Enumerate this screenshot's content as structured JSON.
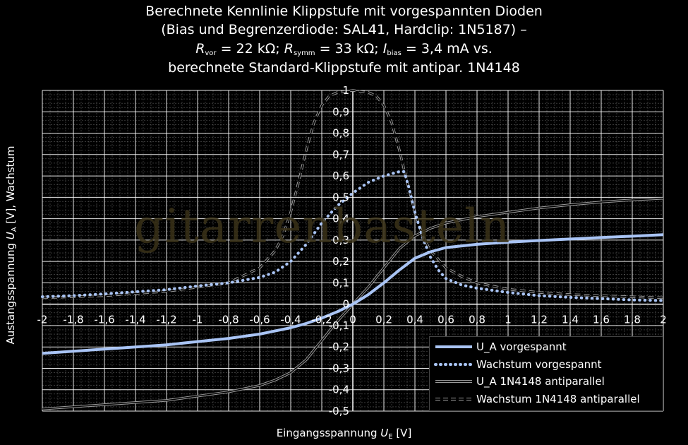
{
  "watermark": "gitarrenbasteln",
  "title": {
    "line1": "Berechnete Kennlinie Klippstufe mit vorgespannten Dioden",
    "line2": "(Bias und Begrenzerdiode: SAL41, Hardclip: 1N5187) –",
    "line3": {
      "r_vor_sym": "R",
      "r_vor_sub": "vor",
      "r_vor_val": " = 22 kΩ; ",
      "r_symm_sym": "R",
      "r_symm_sub": "symm",
      "r_symm_val": " = 33 kΩ; ",
      "i_bias_sym": "I",
      "i_bias_sub": "bias",
      "i_bias_val": " = 3,4 mA vs."
    },
    "line4": "berechnete Standard-Klippstufe mit antipar. 1N4148"
  },
  "axes": {
    "y_label_prefix": "Austangsspannung ",
    "y_label_sym": "U",
    "y_label_sub": "A",
    "y_label_suffix": " [V], Wachstum",
    "x_label_prefix": "Eingangsspannung ",
    "x_label_sym": "U",
    "x_label_sub": "E",
    "x_label_suffix": " [V]"
  },
  "colors": {
    "background": "#000000",
    "grid": "#ffffff",
    "ua_vorgespannt": "#a9c4f5",
    "wachstum_vorgespannt": "#a9c4f5",
    "ua_1n4148": "#9a9a9a",
    "wachstum_1n4148": "#9a9a9a",
    "watermark": "#3a3218"
  },
  "chart_data": {
    "type": "line",
    "xlim": [
      -2,
      2
    ],
    "ylim": [
      -0.5,
      1
    ],
    "grid": true,
    "legend_position": "bottom-right",
    "x_ticks": [
      "-2",
      "-1,8",
      "-1,6",
      "-1,4",
      "-1,2",
      "-1",
      "-0,8",
      "-0,6",
      "-0,4",
      "-0,2",
      "0",
      "0,2",
      "0,4",
      "0,6",
      "0,8",
      "1",
      "1,2",
      "1,4",
      "1,6",
      "1,8",
      "2"
    ],
    "y_ticks": [
      "-0,5",
      "-0,4",
      "-0,3",
      "-0,2",
      "-0,1",
      "0",
      "0,1",
      "0,2",
      "0,3",
      "0,4",
      "0,5",
      "0,6",
      "0,7",
      "0,8",
      "0,9",
      "1"
    ],
    "series": [
      {
        "name": "U_A vorgespannt",
        "style": "solid-thick",
        "x": [
          -2,
          -1.8,
          -1.6,
          -1.4,
          -1.2,
          -1.0,
          -0.8,
          -0.6,
          -0.4,
          -0.3,
          -0.2,
          -0.1,
          0,
          0.1,
          0.2,
          0.3,
          0.4,
          0.5,
          0.6,
          0.8,
          1.0,
          1.2,
          1.4,
          1.6,
          1.8,
          2.0
        ],
        "y": [
          -0.23,
          -0.22,
          -0.21,
          -0.2,
          -0.19,
          -0.175,
          -0.16,
          -0.14,
          -0.11,
          -0.09,
          -0.065,
          -0.035,
          0,
          0.045,
          0.1,
          0.16,
          0.215,
          0.245,
          0.265,
          0.28,
          0.29,
          0.298,
          0.305,
          0.312,
          0.318,
          0.325
        ]
      },
      {
        "name": "Wachstum vorgespannt",
        "style": "dotted",
        "x": [
          -2,
          -1.8,
          -1.6,
          -1.4,
          -1.2,
          -1.0,
          -0.8,
          -0.6,
          -0.5,
          -0.4,
          -0.3,
          -0.2,
          -0.1,
          0,
          0.1,
          0.2,
          0.3,
          0.33,
          0.36,
          0.4,
          0.45,
          0.5,
          0.55,
          0.6,
          0.7,
          0.8,
          1.0,
          1.2,
          1.4,
          1.6,
          1.8,
          2.0
        ],
        "y": [
          0.035,
          0.04,
          0.048,
          0.058,
          0.068,
          0.085,
          0.1,
          0.125,
          0.15,
          0.2,
          0.28,
          0.38,
          0.46,
          0.52,
          0.57,
          0.6,
          0.62,
          0.62,
          0.55,
          0.43,
          0.31,
          0.22,
          0.16,
          0.12,
          0.09,
          0.075,
          0.055,
          0.04,
          0.032,
          0.026,
          0.02,
          0.017
        ]
      },
      {
        "name": "U_A 1N4148 antiparallel",
        "style": "double-line",
        "x": [
          -2,
          -1.8,
          -1.6,
          -1.4,
          -1.2,
          -1.0,
          -0.8,
          -0.6,
          -0.5,
          -0.4,
          -0.3,
          -0.2,
          -0.1,
          0,
          0.1,
          0.2,
          0.3,
          0.4,
          0.5,
          0.6,
          0.8,
          1.0,
          1.2,
          1.4,
          1.6,
          1.8,
          2.0
        ],
        "y": [
          -0.49,
          -0.48,
          -0.47,
          -0.46,
          -0.45,
          -0.43,
          -0.41,
          -0.38,
          -0.355,
          -0.32,
          -0.26,
          -0.17,
          -0.08,
          0,
          0.08,
          0.17,
          0.26,
          0.32,
          0.355,
          0.38,
          0.41,
          0.43,
          0.45,
          0.465,
          0.478,
          0.488,
          0.495
        ]
      },
      {
        "name": "Wachstum 1N4148 antiparallel",
        "style": "dashed-double",
        "x": [
          -2,
          -1.8,
          -1.6,
          -1.4,
          -1.2,
          -1.0,
          -0.8,
          -0.6,
          -0.5,
          -0.45,
          -0.4,
          -0.35,
          -0.3,
          -0.25,
          -0.2,
          -0.15,
          -0.1,
          0,
          0.1,
          0.15,
          0.2,
          0.25,
          0.3,
          0.35,
          0.4,
          0.45,
          0.5,
          0.6,
          0.7,
          0.8,
          1.0,
          1.2,
          1.4,
          1.6,
          1.8,
          2.0
        ],
        "y": [
          0.03,
          0.035,
          0.04,
          0.05,
          0.06,
          0.08,
          0.1,
          0.17,
          0.25,
          0.32,
          0.43,
          0.57,
          0.72,
          0.85,
          0.93,
          0.975,
          0.99,
          1.0,
          0.99,
          0.975,
          0.93,
          0.85,
          0.72,
          0.57,
          0.43,
          0.32,
          0.25,
          0.17,
          0.13,
          0.1,
          0.07,
          0.055,
          0.045,
          0.04,
          0.035,
          0.03
        ]
      }
    ]
  }
}
